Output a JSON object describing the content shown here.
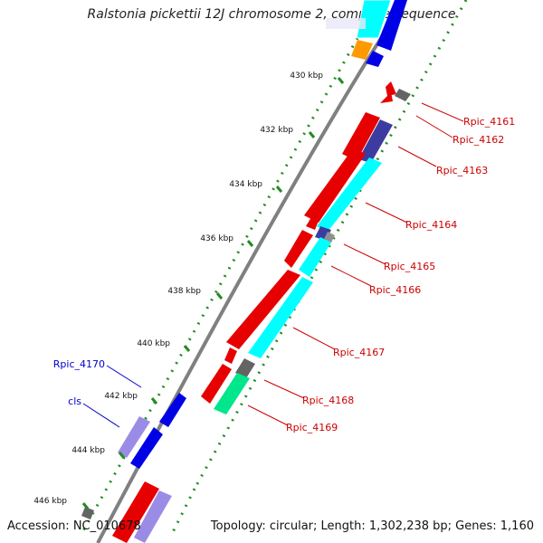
{
  "title": "Ralstonia pickettii 12J chromosome 2, complete sequence",
  "accession": "Accession: NC_010678",
  "summary": "Topology: circular; Length: 1,302,238 bp; Genes: 1,160",
  "colors": {
    "backbone": "#808080",
    "dots": "#228b22",
    "red": "#e60000",
    "blue": "#0000e6",
    "cyan": "#00ffff",
    "navy": "#3c3ca0",
    "lavender": "#9a8ce6",
    "gray": "#646464",
    "green": "#00e68c",
    "orange": "#ff9900",
    "label_red": "#cc0000",
    "label_blue": "#0000cc"
  },
  "ticks": [
    {
      "label": "430 kbp"
    },
    {
      "label": "432 kbp"
    },
    {
      "label": "434 kbp"
    },
    {
      "label": "436 kbp"
    },
    {
      "label": "438 kbp"
    },
    {
      "label": "440 kbp"
    },
    {
      "label": "442 kbp"
    },
    {
      "label": "444 kbp"
    },
    {
      "label": "446 kbp"
    }
  ],
  "genes_right": [
    {
      "name": "Rpic_4161"
    },
    {
      "name": "Rpic_4162"
    },
    {
      "name": "Rpic_4163"
    },
    {
      "name": "Rpic_4164"
    },
    {
      "name": "Rpic_4165"
    },
    {
      "name": "Rpic_4166"
    },
    {
      "name": "Rpic_4167"
    },
    {
      "name": "Rpic_4168"
    },
    {
      "name": "Rpic_4169"
    }
  ],
  "genes_left": [
    {
      "name": "Rpic_4170"
    },
    {
      "name": "cls"
    }
  ]
}
